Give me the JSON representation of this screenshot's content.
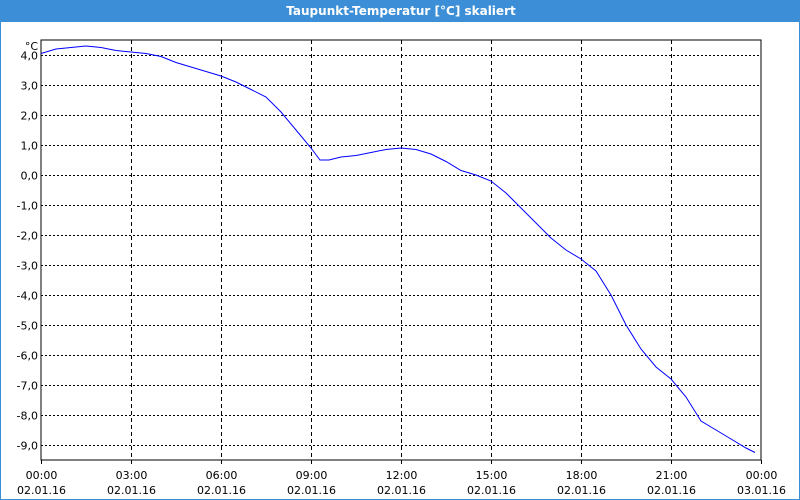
{
  "window": {
    "title": "Taupunkt-Temperatur [°C] skaliert"
  },
  "chart_data": {
    "type": "line",
    "title": "Taupunkt-Temperatur [°C] skaliert",
    "ylabel": "°C",
    "xlabel": "",
    "ylim": [
      -9.5,
      4.5
    ],
    "xlim": [
      0,
      24
    ],
    "grid": true,
    "y_ticks": [
      4,
      3,
      2,
      1,
      0,
      -1,
      -2,
      -3,
      -4,
      -5,
      -6,
      -7,
      -8,
      -9
    ],
    "y_tick_labels": [
      "4,0",
      "3,0",
      "2,0",
      "1,0",
      "0,0",
      "-1,0",
      "-2,0",
      "-3,0",
      "-4,0",
      "-5,0",
      "-6,0",
      "-7,0",
      "-8,0",
      "-9,0"
    ],
    "x_ticks": [
      {
        "x": 0,
        "time": "00:00",
        "date": "02.01.16"
      },
      {
        "x": 3,
        "time": "03:00",
        "date": "02.01.16"
      },
      {
        "x": 6,
        "time": "06:00",
        "date": "02.01.16"
      },
      {
        "x": 9,
        "time": "09:00",
        "date": "02.01.16"
      },
      {
        "x": 12,
        "time": "12:00",
        "date": "02.01.16"
      },
      {
        "x": 15,
        "time": "15:00",
        "date": "02.01.16"
      },
      {
        "x": 18,
        "time": "18:00",
        "date": "02.01.16"
      },
      {
        "x": 21,
        "time": "21:00",
        "date": "02.01.16"
      },
      {
        "x": 24,
        "time": "00:00",
        "date": "03.01.16"
      }
    ],
    "series": [
      {
        "color": "#0000ff",
        "x": [
          0,
          0.5,
          1,
          1.5,
          2,
          2.5,
          3,
          3.5,
          4,
          4.5,
          5,
          5.5,
          6,
          6.5,
          7,
          7.5,
          8,
          8.5,
          9,
          9.3,
          9.6,
          10,
          10.5,
          11,
          11.5,
          12,
          12.5,
          13,
          13.5,
          14,
          14.5,
          15,
          15.5,
          16,
          16.5,
          17,
          17.5,
          18,
          18.5,
          19,
          19.5,
          20,
          20.5,
          21,
          21.5,
          22,
          22.5,
          23,
          23.5,
          23.8
        ],
        "y": [
          4.05,
          4.2,
          4.25,
          4.3,
          4.25,
          4.15,
          4.1,
          4.05,
          3.95,
          3.75,
          3.6,
          3.45,
          3.3,
          3.1,
          2.85,
          2.6,
          2.1,
          1.5,
          0.9,
          0.5,
          0.5,
          0.6,
          0.65,
          0.75,
          0.85,
          0.9,
          0.85,
          0.7,
          0.45,
          0.15,
          0.0,
          -0.2,
          -0.6,
          -1.1,
          -1.6,
          -2.1,
          -2.5,
          -2.8,
          -3.2,
          -4.0,
          -5.0,
          -5.8,
          -6.4,
          -6.8,
          -7.4,
          -8.2,
          -8.5,
          -8.8,
          -9.1,
          -9.25
        ]
      }
    ]
  }
}
